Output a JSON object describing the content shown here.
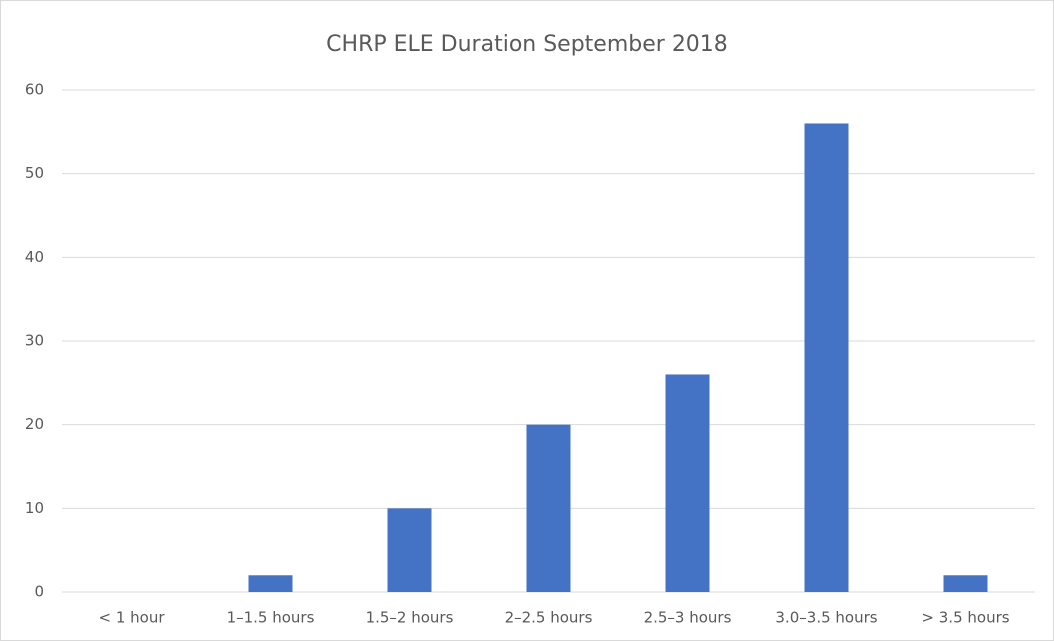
{
  "chart_data": {
    "type": "bar",
    "title": "CHRP ELE Duration September 2018",
    "categories": [
      "< 1 hour",
      "1–1.5 hours",
      "1.5–2 hours",
      "2–2.5 hours",
      "2.5–3 hours",
      "3.0–3.5 hours",
      "> 3.5 hours"
    ],
    "values": [
      0,
      2,
      10,
      20,
      26,
      56,
      2
    ],
    "color": "#4472c4",
    "ylim": [
      0,
      60
    ],
    "yticks": [
      0,
      10,
      20,
      30,
      40,
      50,
      60
    ],
    "grid": true
  }
}
